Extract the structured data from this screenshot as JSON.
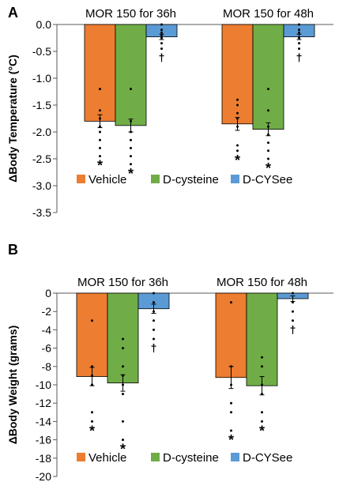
{
  "chart_data": [
    {
      "panel_label": "A",
      "type": "bar",
      "categories": [
        "MOR 150 for 36h",
        "MOR 150 for 48h"
      ],
      "ylabel": "ΔBody Temperature (°C)",
      "ylim": [
        -3.5,
        0.0
      ],
      "yticks": [
        0.0,
        -0.5,
        -1.0,
        -1.5,
        -2.0,
        -2.5,
        -3.0,
        -3.5
      ],
      "ytick_labels": [
        "0.0",
        "-0.5",
        "-1.0",
        "-1.5",
        "-2.0",
        "-2.5",
        "-3.0",
        "-3.5"
      ],
      "grid": false,
      "legend_position": "bottom",
      "series": [
        {
          "name": "Vehicle",
          "color": "#ED7D31",
          "values": [
            -1.8,
            -1.85
          ],
          "errors": [
            0.12,
            0.12
          ],
          "marks": [
            "*",
            "*"
          ],
          "points": [
            [
              -1.2,
              -1.6,
              -1.75,
              -1.9,
              -2.0,
              -2.15,
              -2.3,
              -2.45
            ],
            [
              -1.4,
              -1.5,
              -1.65,
              -1.75,
              -1.9,
              -2.25,
              -2.35
            ]
          ]
        },
        {
          "name": "D-cysteine",
          "color": "#70AD47",
          "values": [
            -1.88,
            -1.95
          ],
          "errors": [
            0.12,
            0.12
          ],
          "marks": [
            "*",
            "*"
          ],
          "points": [
            [
              -1.2,
              -1.8,
              -2.0,
              -2.15,
              -2.3,
              -2.45,
              -2.6
            ],
            [
              -1.2,
              -1.6,
              -1.9,
              -2.05,
              -2.2,
              -2.35,
              -2.5
            ]
          ]
        },
        {
          "name": "D-CYSee",
          "color": "#5B9BD5",
          "values": [
            -0.23,
            -0.23
          ],
          "errors": [
            0.05,
            0.05
          ],
          "marks": [
            "†",
            "†"
          ],
          "points": [
            [
              -0.0,
              -0.1,
              -0.15,
              -0.2,
              -0.25,
              -0.35,
              -0.45
            ],
            [
              -0.0,
              -0.1,
              -0.15,
              -0.25,
              -0.35,
              -0.45
            ]
          ]
        }
      ]
    },
    {
      "panel_label": "B",
      "type": "bar",
      "categories": [
        "MOR 150 for 36h",
        "MOR 150 for 48h"
      ],
      "ylabel": "ΔBody Weight (grams)",
      "ylim": [
        -20,
        0
      ],
      "yticks": [
        0,
        -2,
        -4,
        -6,
        -8,
        -10,
        -12,
        -14,
        -16,
        -18,
        -20
      ],
      "ytick_labels": [
        "0",
        "-2",
        "-4",
        "-6",
        "-8",
        "-10",
        "-12",
        "-14",
        "-16",
        "-18",
        "-20"
      ],
      "grid": false,
      "legend_position": "bottom",
      "series": [
        {
          "name": "Vehicle",
          "color": "#ED7D31",
          "values": [
            -9.1,
            -9.2
          ],
          "errors": [
            1.0,
            1.2
          ],
          "marks": [
            "*",
            "*"
          ],
          "points": [
            [
              -3.0,
              -8.0,
              -9.0,
              -10.0,
              -10.0,
              -13.0,
              -14.0
            ],
            [
              -1.0,
              -8.0,
              -10.0,
              -12.0,
              -13.0,
              -15.0
            ]
          ]
        },
        {
          "name": "D-cysteine",
          "color": "#70AD47",
          "values": [
            -9.8,
            -10.1
          ],
          "errors": [
            0.9,
            1.0
          ],
          "marks": [
            "*",
            "*"
          ],
          "points": [
            [
              -5.0,
              -6.0,
              -8.0,
              -9.0,
              -10.0,
              -11.0,
              -14.0,
              -16.0
            ],
            [
              -7.0,
              -8.0,
              -10.0,
              -11.0,
              -13.0,
              -14.0
            ]
          ]
        },
        {
          "name": "D-CYSee",
          "color": "#5B9BD5",
          "values": [
            -1.7,
            -0.6
          ],
          "errors": [
            0.5,
            0.3
          ],
          "marks": [
            "†",
            "†"
          ],
          "points": [
            [
              0.0,
              -1.0,
              -2.0,
              -3.0,
              -4.0,
              -5.0
            ],
            [
              0.0,
              -1.0,
              -2.0,
              -3.0
            ]
          ]
        }
      ]
    }
  ]
}
